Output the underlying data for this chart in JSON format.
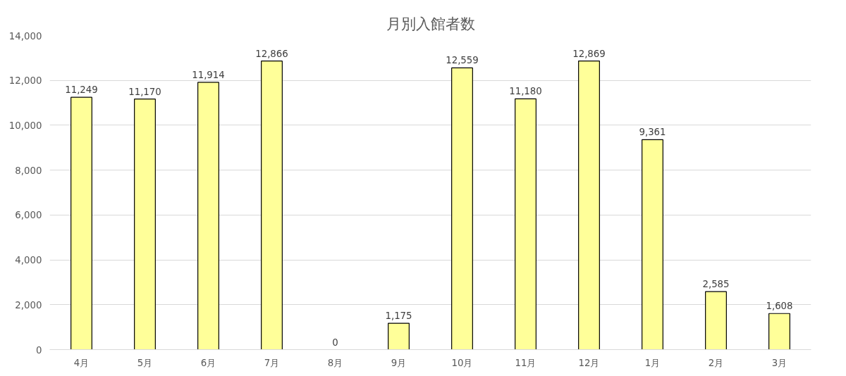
{
  "chart_data": {
    "type": "bar",
    "title": "月別入館者数",
    "categories": [
      "4月",
      "5月",
      "6月",
      "7月",
      "8月",
      "9月",
      "10月",
      "11月",
      "12月",
      "1月",
      "2月",
      "3月"
    ],
    "values": [
      11249,
      11170,
      11914,
      12866,
      0,
      1175,
      12559,
      11180,
      12869,
      9361,
      2585,
      1608
    ],
    "value_labels": [
      "11,249",
      "11,170",
      "11,914",
      "12,866",
      "0",
      "1,175",
      "12,559",
      "11,180",
      "12,869",
      "9,361",
      "2,585",
      "1,608"
    ],
    "color": "#ffff99",
    "ylim": [
      0,
      14000
    ],
    "yticks": [
      0,
      {
        "value": 2000,
        "label": "2,000"
      },
      {
        "value": 4000,
        "label": "4,000"
      },
      {
        "value": 6000,
        "label": "6,000"
      },
      {
        "value": 8000,
        "label": "8,000"
      },
      {
        "value": 10000,
        "label": "10,000"
      },
      {
        "value": 12000,
        "label": "12,000"
      },
      {
        "value": 14000,
        "label": "14,000"
      }
    ],
    "grid": "y"
  }
}
